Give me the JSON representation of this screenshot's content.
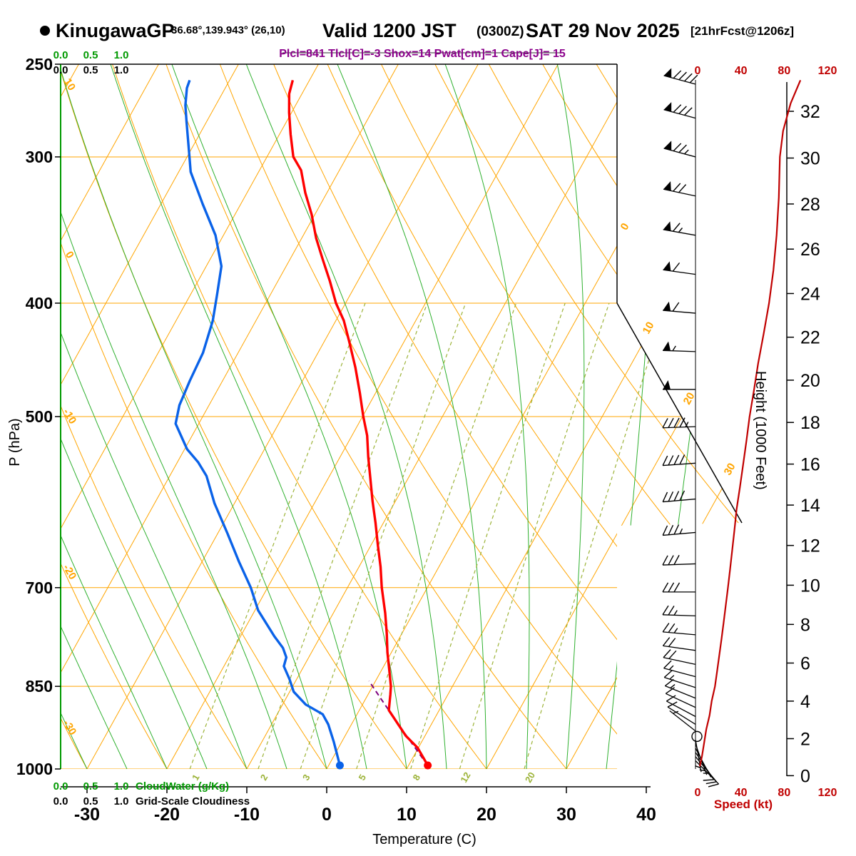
{
  "header": {
    "station": "KinugawaGP",
    "coords": "36.68°,139.943° (26,10)",
    "valid": "Valid 1200 JST",
    "zulu": "(0300Z)",
    "date": "SAT 29 Nov 2025",
    "fcst": "[21hrFcst@1206z]",
    "params": "Plcl=841 Tlcl[C]=-3 Shox=14 Pwat[cm]=1 Cape[J]= 15"
  },
  "colors": {
    "isotherm": "#ffa500",
    "moist_adiabat": "#2eb02e",
    "mixing_ratio": "#9cb338",
    "temperature": "#ff0000",
    "dewpoint": "#0a62e8",
    "wind_speed": "#c00000",
    "parcel": "#7d007d",
    "params_text": "#8b008b",
    "cloudwater": "#009900"
  },
  "chart_data": {
    "type": "skewt_log_p_sounding",
    "pressure_axis": {
      "label": "P (hPa)",
      "scale": "log",
      "range": [
        250,
        1000
      ],
      "ticks": [
        250,
        300,
        400,
        500,
        700,
        850,
        1000
      ]
    },
    "temp_axis": {
      "label": "Temperature (C)",
      "ticks": [
        -30,
        -20,
        -10,
        0,
        10,
        20,
        30,
        40
      ]
    },
    "height_axis": {
      "label": "Height (1000 Feet)",
      "ticks": [
        0,
        2,
        4,
        6,
        8,
        10,
        12,
        14,
        16,
        18,
        20,
        22,
        24,
        26,
        28,
        30,
        32
      ]
    },
    "speed_axis": {
      "label": "Speed (kt)",
      "ticks": [
        0,
        40,
        80,
        120
      ],
      "max": 120
    },
    "grid": {
      "isotherm_step_c": 10,
      "dry_adiabat_step_c": 10,
      "moist_adiabat_step_c": 5,
      "isotherm_labels": [
        0,
        10,
        20,
        30
      ],
      "dry_adiabat_labels": [
        10,
        0,
        -10,
        -20,
        -30
      ],
      "mixing_ratio_lines_g_kg": [
        1,
        2,
        3,
        5,
        8,
        12,
        20
      ]
    },
    "temperature_profile_p_T": [
      [
        993,
        12.4
      ],
      [
        959,
        9.9
      ],
      [
        937,
        7.6
      ],
      [
        906,
        5.0
      ],
      [
        891,
        3.7
      ],
      [
        864,
        2.8
      ],
      [
        850,
        2.3
      ],
      [
        824,
        1.0
      ],
      [
        795,
        -0.5
      ],
      [
        766,
        -1.9
      ],
      [
        736,
        -3.5
      ],
      [
        700,
        -5.7
      ],
      [
        672,
        -7.3
      ],
      [
        643,
        -9.2
      ],
      [
        616,
        -11.0
      ],
      [
        590,
        -12.9
      ],
      [
        565,
        -14.7
      ],
      [
        541,
        -16.5
      ],
      [
        519,
        -18.1
      ],
      [
        500,
        -19.9
      ],
      [
        477,
        -22.0
      ],
      [
        454,
        -24.3
      ],
      [
        432,
        -26.8
      ],
      [
        414,
        -29.0
      ],
      [
        400,
        -31.2
      ],
      [
        383,
        -33.5
      ],
      [
        367,
        -35.9
      ],
      [
        352,
        -38.2
      ],
      [
        336,
        -40.4
      ],
      [
        322,
        -42.7
      ],
      [
        308,
        -44.8
      ],
      [
        300,
        -46.7
      ],
      [
        287,
        -48.6
      ],
      [
        275,
        -50.3
      ],
      [
        265,
        -51.6
      ],
      [
        258,
        -52.1
      ]
    ],
    "dewpoint_profile_p_Td": [
      [
        993,
        1.4
      ],
      [
        948,
        -1.0
      ],
      [
        916,
        -2.9
      ],
      [
        898,
        -4.3
      ],
      [
        881,
        -7.1
      ],
      [
        859,
        -9.5
      ],
      [
        838,
        -10.9
      ],
      [
        817,
        -12.5
      ],
      [
        803,
        -12.8
      ],
      [
        788,
        -13.9
      ],
      [
        770,
        -15.8
      ],
      [
        732,
        -19.6
      ],
      [
        700,
        -22.1
      ],
      [
        665,
        -25.4
      ],
      [
        629,
        -28.8
      ],
      [
        593,
        -32.5
      ],
      [
        562,
        -35.4
      ],
      [
        547,
        -37.4
      ],
      [
        533,
        -39.7
      ],
      [
        507,
        -42.9
      ],
      [
        489,
        -43.7
      ],
      [
        466,
        -44.1
      ],
      [
        441,
        -44.4
      ],
      [
        414,
        -45.4
      ],
      [
        393,
        -46.7
      ],
      [
        372,
        -48.1
      ],
      [
        350,
        -51.0
      ],
      [
        329,
        -54.8
      ],
      [
        309,
        -58.5
      ],
      [
        300,
        -59.7
      ],
      [
        280,
        -62.5
      ],
      [
        271,
        -63.8
      ],
      [
        262,
        -64.8
      ],
      [
        258,
        -65.0
      ]
    ],
    "wind_speed_profile_p_kt": [
      [
        995,
        2
      ],
      [
        975,
        4
      ],
      [
        950,
        6
      ],
      [
        925,
        8
      ],
      [
        900,
        11
      ],
      [
        875,
        13
      ],
      [
        850,
        16
      ],
      [
        825,
        18
      ],
      [
        800,
        20
      ],
      [
        775,
        22
      ],
      [
        750,
        24
      ],
      [
        725,
        26
      ],
      [
        700,
        28
      ],
      [
        675,
        30
      ],
      [
        650,
        32
      ],
      [
        625,
        34
      ],
      [
        600,
        36
      ],
      [
        575,
        39
      ],
      [
        550,
        42
      ],
      [
        525,
        45
      ],
      [
        500,
        48
      ],
      [
        475,
        52
      ],
      [
        450,
        56
      ],
      [
        425,
        61
      ],
      [
        400,
        66
      ],
      [
        375,
        70
      ],
      [
        350,
        73
      ],
      [
        325,
        75
      ],
      [
        300,
        76
      ],
      [
        285,
        79
      ],
      [
        270,
        86
      ],
      [
        258,
        95
      ]
    ],
    "wind_barbs_p_dir_kt": [
      [
        260,
        285,
        90
      ],
      [
        278,
        285,
        80
      ],
      [
        300,
        285,
        75
      ],
      [
        324,
        282,
        70
      ],
      [
        350,
        280,
        65
      ],
      [
        378,
        278,
        60
      ],
      [
        408,
        275,
        60
      ],
      [
        440,
        272,
        55
      ],
      [
        474,
        270,
        50
      ],
      [
        510,
        268,
        45
      ],
      [
        548,
        266,
        40
      ],
      [
        588,
        265,
        40
      ],
      [
        628,
        265,
        35
      ],
      [
        668,
        268,
        30
      ],
      [
        706,
        270,
        30
      ],
      [
        740,
        272,
        25
      ],
      [
        768,
        275,
        25
      ],
      [
        792,
        278,
        20
      ],
      [
        814,
        282,
        20
      ],
      [
        834,
        285,
        15
      ],
      [
        852,
        288,
        15
      ],
      [
        870,
        292,
        15
      ],
      [
        886,
        295,
        10
      ],
      [
        902,
        298,
        10
      ],
      [
        916,
        302,
        10
      ],
      [
        928,
        308,
        5
      ],
      [
        944,
        170,
        5
      ],
      [
        952,
        160,
        5
      ],
      [
        960,
        152,
        5
      ],
      [
        968,
        146,
        10
      ],
      [
        976,
        140,
        10
      ],
      [
        984,
        135,
        10
      ]
    ],
    "calm_circle_p": 938,
    "surface": {
      "pressure": 993,
      "temp_c": 12.4,
      "dewpoint_c": 1.4
    },
    "parcel": {
      "lcl_hpa": 841,
      "tlcl_c": -3,
      "from_p": 993,
      "from_t": 12.4
    },
    "cloudwater_scale": {
      "title": "CloudWater (g/Kg)",
      "labels": [
        "0.0",
        "0.5",
        "1.0"
      ]
    },
    "cloudiness_scale": {
      "title": "Grid-Scale Cloudiness",
      "labels": [
        "0.0",
        "0.5",
        "1.0"
      ]
    }
  }
}
